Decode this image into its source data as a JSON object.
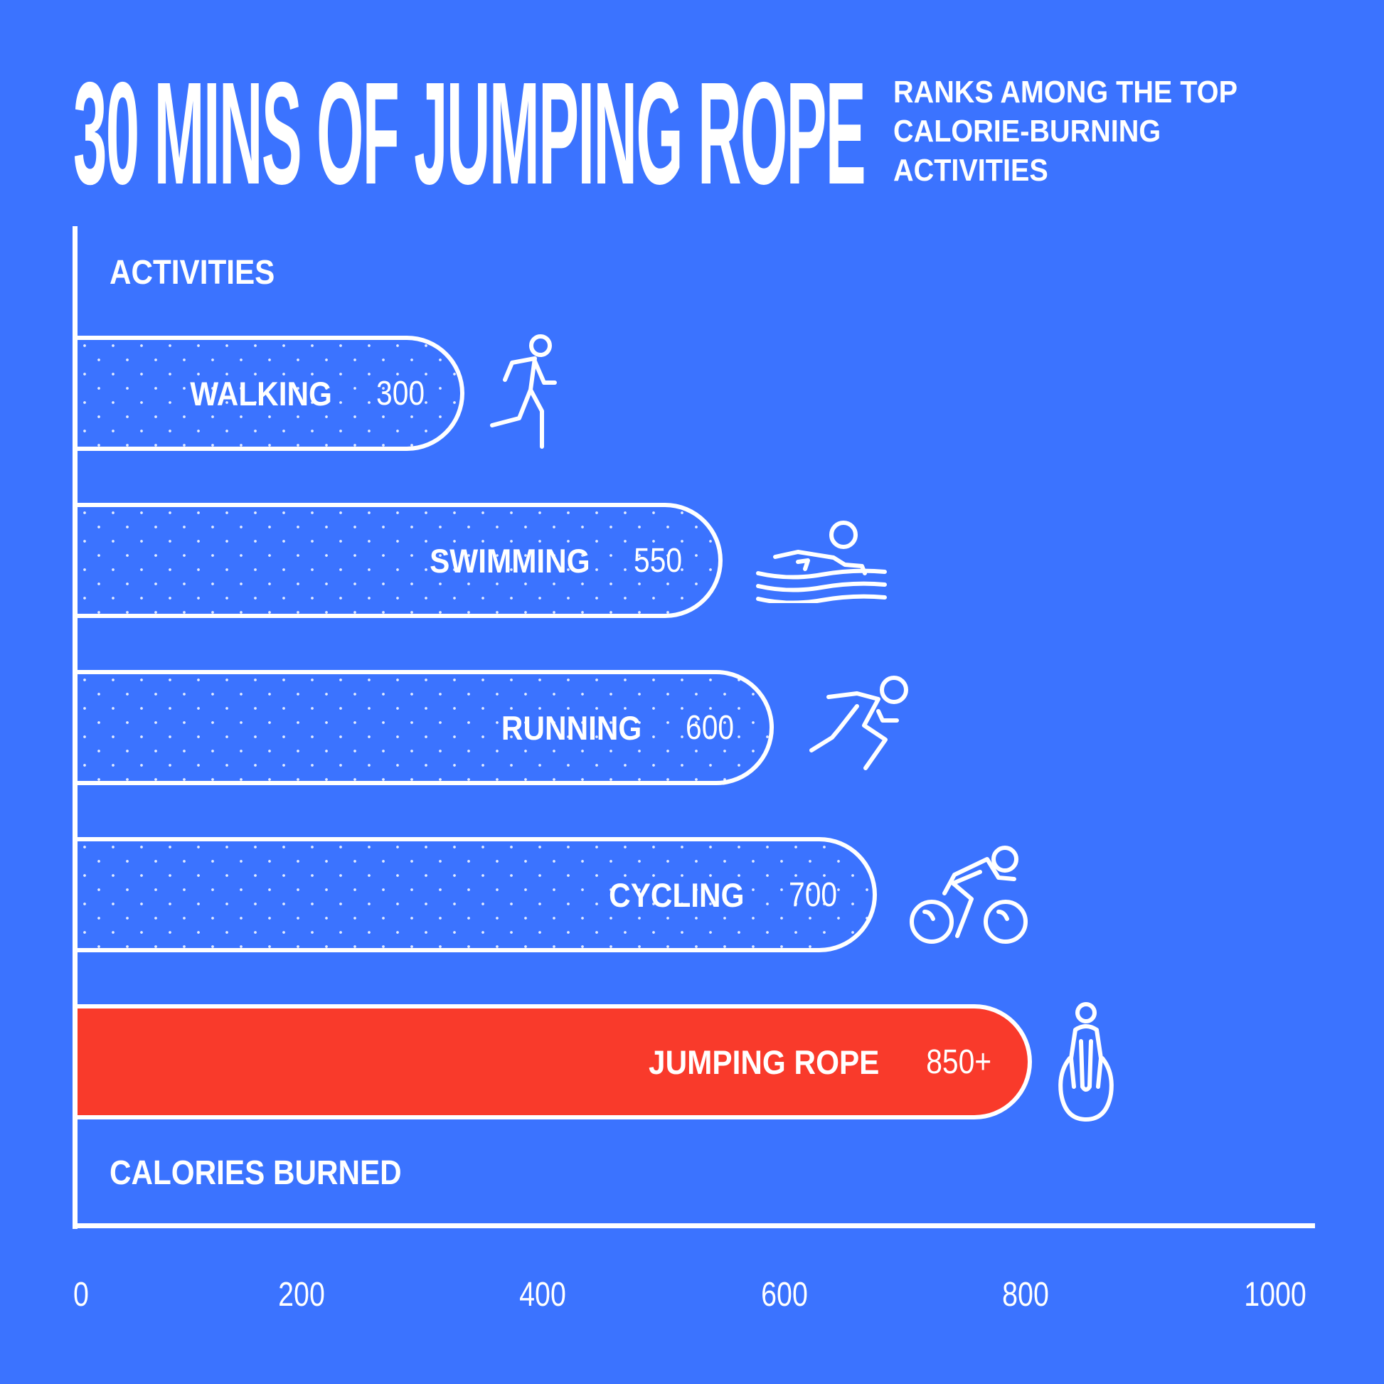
{
  "colors": {
    "background": "#3b73ff",
    "highlight": "#f93a2b",
    "foreground": "#ffffff"
  },
  "chart_data": {
    "type": "bar",
    "orientation": "horizontal",
    "title": "30 MINS OF JUMPING ROPE",
    "subtitle": [
      "RANKS AMONG THE TOP",
      "CALORIE-BURNING",
      "ACTIVITIES"
    ],
    "ylabel": "ACTIVITIES",
    "xlabel": "CALORIES BURNED",
    "xlim": [
      0,
      1000
    ],
    "xticks": [
      "0",
      "200",
      "400",
      "600",
      "800",
      "1000"
    ],
    "categories": [
      "WALKING",
      "SWIMMING",
      "RUNNING",
      "CYCLING",
      "JUMPING ROPE"
    ],
    "values": [
      300,
      550,
      600,
      700,
      850
    ],
    "value_labels": [
      "300",
      "550",
      "600",
      "700",
      "850+"
    ],
    "icons": [
      "walking-icon",
      "swimming-icon",
      "running-icon",
      "cycling-icon",
      "jump-rope-icon"
    ],
    "highlight": "JUMPING ROPE",
    "grid": false,
    "legend": "none"
  }
}
